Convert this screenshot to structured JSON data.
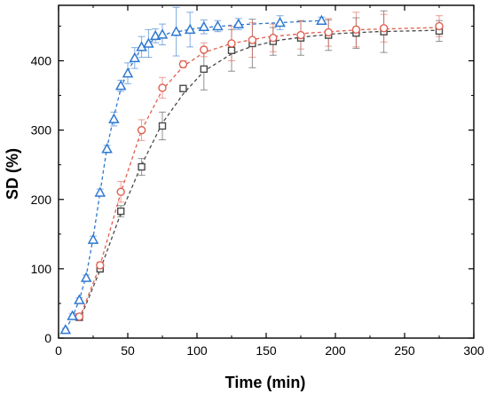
{
  "chart_data": {
    "type": "scatter",
    "title": "",
    "xlabel": "Time (min)",
    "ylabel": "SD (%)",
    "xlim": [
      0,
      300
    ],
    "ylim": [
      0,
      480
    ],
    "xticks": [
      0,
      50,
      100,
      150,
      200,
      250,
      300
    ],
    "yticks": [
      0,
      100,
      200,
      300,
      400
    ],
    "grid": false,
    "legend": "none",
    "series": [
      {
        "marker": "square",
        "color": "#4a4a4a",
        "fit_line": "dashed",
        "points": [
          {
            "x": 15,
            "y": 30,
            "err": 3
          },
          {
            "x": 30,
            "y": 100,
            "err": 5
          },
          {
            "x": 45,
            "y": 183,
            "err": 8
          },
          {
            "x": 60,
            "y": 247,
            "err": 12
          },
          {
            "x": 75,
            "y": 306,
            "err": 20
          },
          {
            "x": 90,
            "y": 360,
            "err": 0
          },
          {
            "x": 105,
            "y": 388,
            "err": 30
          },
          {
            "x": 125,
            "y": 415,
            "err": 30
          },
          {
            "x": 140,
            "y": 425,
            "err": 35
          },
          {
            "x": 155,
            "y": 428,
            "err": 20
          },
          {
            "x": 175,
            "y": 433,
            "err": 25
          },
          {
            "x": 195,
            "y": 437,
            "err": 22
          },
          {
            "x": 215,
            "y": 440,
            "err": 22
          },
          {
            "x": 235,
            "y": 442,
            "err": 30
          },
          {
            "x": 275,
            "y": 443,
            "err": 15
          }
        ],
        "fit": [
          [
            15,
            25
          ],
          [
            30,
            98
          ],
          [
            45,
            180
          ],
          [
            60,
            250
          ],
          [
            75,
            310
          ],
          [
            90,
            352
          ],
          [
            105,
            385
          ],
          [
            125,
            410
          ],
          [
            140,
            421
          ],
          [
            160,
            430
          ],
          [
            180,
            435
          ],
          [
            200,
            439
          ],
          [
            230,
            442
          ],
          [
            275,
            444
          ]
        ]
      },
      {
        "marker": "circle",
        "color": "#e06050",
        "fit_line": "dashed",
        "points": [
          {
            "x": 15,
            "y": 31,
            "err": 3
          },
          {
            "x": 30,
            "y": 105,
            "err": 5
          },
          {
            "x": 45,
            "y": 211,
            "err": 15
          },
          {
            "x": 60,
            "y": 300,
            "err": 15
          },
          {
            "x": 75,
            "y": 361,
            "err": 15
          },
          {
            "x": 90,
            "y": 395,
            "err": 5
          },
          {
            "x": 105,
            "y": 416,
            "err": 10
          },
          {
            "x": 125,
            "y": 425,
            "err": 25
          },
          {
            "x": 140,
            "y": 430,
            "err": 25
          },
          {
            "x": 155,
            "y": 433,
            "err": 20
          },
          {
            "x": 175,
            "y": 437,
            "err": 20
          },
          {
            "x": 195,
            "y": 441,
            "err": 20
          },
          {
            "x": 215,
            "y": 445,
            "err": 25
          },
          {
            "x": 235,
            "y": 447,
            "err": 20
          },
          {
            "x": 275,
            "y": 450,
            "err": 15
          }
        ],
        "fit": [
          [
            15,
            28
          ],
          [
            30,
            105
          ],
          [
            45,
            210
          ],
          [
            60,
            300
          ],
          [
            75,
            358
          ],
          [
            90,
            392
          ],
          [
            105,
            412
          ],
          [
            125,
            425
          ],
          [
            150,
            434
          ],
          [
            180,
            440
          ],
          [
            220,
            445
          ],
          [
            275,
            448
          ]
        ]
      },
      {
        "marker": "triangle",
        "color": "#2f78d0",
        "fit_line": "dashed",
        "points": [
          {
            "x": 5,
            "y": 12,
            "err": 2
          },
          {
            "x": 10,
            "y": 32,
            "err": 3
          },
          {
            "x": 15,
            "y": 55,
            "err": 3
          },
          {
            "x": 20,
            "y": 87,
            "err": 4
          },
          {
            "x": 25,
            "y": 142,
            "err": 5
          },
          {
            "x": 30,
            "y": 210,
            "err": 5
          },
          {
            "x": 35,
            "y": 273,
            "err": 5
          },
          {
            "x": 40,
            "y": 316,
            "err": 10
          },
          {
            "x": 45,
            "y": 364,
            "err": 8
          },
          {
            "x": 50,
            "y": 382,
            "err": 15
          },
          {
            "x": 55,
            "y": 404,
            "err": 15
          },
          {
            "x": 60,
            "y": 420,
            "err": 15
          },
          {
            "x": 65,
            "y": 425,
            "err": 20
          },
          {
            "x": 70,
            "y": 436,
            "err": 10
          },
          {
            "x": 75,
            "y": 438,
            "err": 15
          },
          {
            "x": 85,
            "y": 442,
            "err": 35
          },
          {
            "x": 95,
            "y": 445,
            "err": 25
          },
          {
            "x": 105,
            "y": 449,
            "err": 10
          },
          {
            "x": 115,
            "y": 450,
            "err": 8
          },
          {
            "x": 130,
            "y": 453,
            "err": 8
          },
          {
            "x": 160,
            "y": 455,
            "err": 10
          },
          {
            "x": 190,
            "y": 458,
            "err": 5
          }
        ],
        "fit": [
          [
            5,
            12
          ],
          [
            10,
            30
          ],
          [
            15,
            55
          ],
          [
            20,
            90
          ],
          [
            25,
            145
          ],
          [
            30,
            210
          ],
          [
            35,
            275
          ],
          [
            40,
            320
          ],
          [
            45,
            360
          ],
          [
            50,
            385
          ],
          [
            55,
            402
          ],
          [
            60,
            418
          ],
          [
            70,
            432
          ],
          [
            80,
            440
          ],
          [
            100,
            447
          ],
          [
            130,
            452
          ],
          [
            190,
            458
          ]
        ]
      }
    ]
  }
}
